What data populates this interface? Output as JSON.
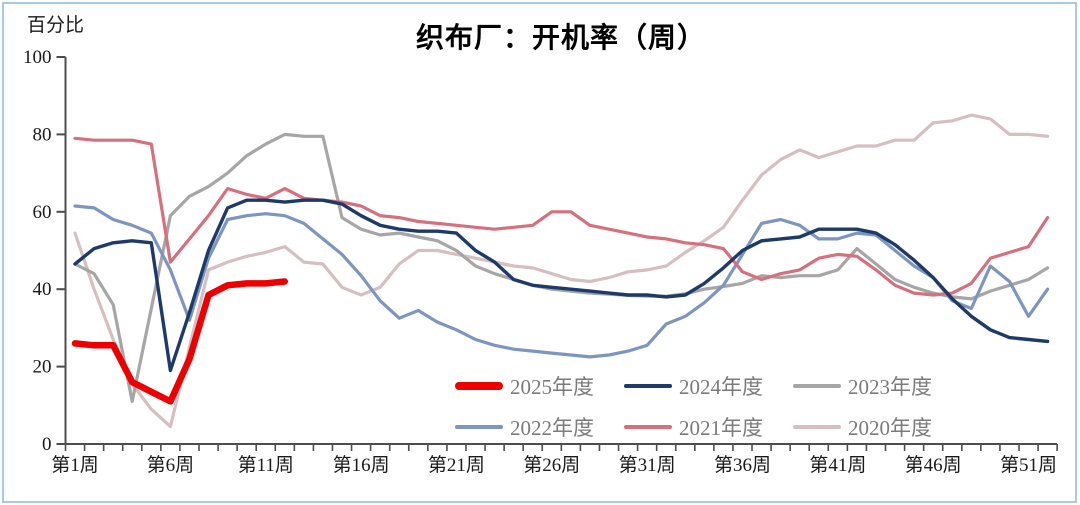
{
  "frame": {
    "border_color": "#a9c9e5"
  },
  "chart_data": {
    "type": "line",
    "title": "织布厂：开机率（周）",
    "ylabel": "百分比",
    "xlabel": "",
    "ylim": [
      0,
      100
    ],
    "y_ticks": [
      0,
      20,
      40,
      60,
      80,
      100
    ],
    "x_weeks_total": 52,
    "x_tick_weeks": [
      1,
      6,
      11,
      16,
      21,
      26,
      31,
      36,
      41,
      46,
      51
    ],
    "x_tick_labels": [
      "第1周",
      "第6周",
      "第11周",
      "第16周",
      "第21周",
      "第26周",
      "第31周",
      "第36周",
      "第41周",
      "第46周",
      "第51周"
    ],
    "grid": false,
    "legend_position": "inside-bottom-center",
    "legend_rows": [
      [
        "2025年度",
        "2024年度",
        "2023年度"
      ],
      [
        "2022年度",
        "2021年度",
        "2020年度"
      ]
    ],
    "series": [
      {
        "name": "2020年度",
        "color": "#d5bfc1",
        "line_width": 3.2,
        "values": [
          54.5,
          40,
          27,
          15.5,
          9,
          4.5,
          25,
          45,
          47,
          48.5,
          49.5,
          51,
          47,
          46.5,
          40.5,
          38.5,
          40.5,
          46.5,
          50,
          50,
          49,
          48,
          47,
          46,
          45.5,
          44,
          42.5,
          42,
          43,
          44.5,
          45,
          46,
          49.5,
          52.5,
          56,
          63,
          69.5,
          73.5,
          76,
          74,
          75.5,
          77,
          77,
          78.5,
          78.5,
          83,
          83.5,
          85,
          84,
          80,
          80,
          79.5
        ]
      },
      {
        "name": "2023年度",
        "color": "#a6a6a6",
        "line_width": 3.2,
        "values": [
          46.5,
          44,
          36,
          11,
          35,
          59,
          64,
          66.5,
          70,
          74.5,
          77.5,
          80,
          79.5,
          79.5,
          58.5,
          55.5,
          54,
          54.5,
          53.5,
          52.5,
          50,
          46,
          44,
          42.5,
          41,
          40,
          39.5,
          39,
          38.7,
          38.4,
          38.2,
          38.2,
          38.8,
          40,
          40.7,
          41.5,
          43.5,
          43,
          43.5,
          43.5,
          45,
          50.5,
          46.5,
          42.5,
          40.5,
          39,
          38,
          37.5,
          39.5,
          41,
          42.5,
          45.5
        ]
      },
      {
        "name": "2022年度",
        "color": "#7d95bf",
        "line_width": 3.2,
        "values": [
          61.5,
          61,
          58,
          56.5,
          54.5,
          45,
          32,
          48,
          58,
          59,
          59.5,
          59,
          57,
          53,
          49,
          43.5,
          37,
          32.5,
          34.5,
          31.5,
          29.5,
          27,
          25.5,
          24.5,
          24,
          23.5,
          23,
          22.5,
          23,
          24,
          25.5,
          31,
          33,
          36.5,
          41,
          49,
          57,
          58,
          56.5,
          53,
          53,
          54.5,
          54,
          50,
          46,
          43,
          37,
          35,
          46,
          42,
          33,
          40
        ]
      },
      {
        "name": "2021年度",
        "color": "#d5707e",
        "line_width": 3.2,
        "values": [
          79,
          78.5,
          78.5,
          78.5,
          77.5,
          47,
          53,
          59,
          66,
          64.5,
          63.5,
          66,
          63.5,
          63,
          62.5,
          61.5,
          59,
          58.5,
          57.5,
          57,
          56.5,
          56,
          55.5,
          56,
          56.5,
          60,
          60,
          56.5,
          55.5,
          54.5,
          53.5,
          53,
          52,
          51.5,
          50.5,
          44.5,
          42.5,
          44,
          45,
          48,
          49,
          48.5,
          45,
          41,
          39,
          38.5,
          39,
          41.5,
          48,
          49.5,
          51,
          58.5
        ]
      },
      {
        "name": "2024年度",
        "color": "#1e3a68",
        "line_width": 3.4,
        "values": [
          46.5,
          50.5,
          52,
          52.5,
          52,
          19,
          34,
          50,
          61,
          63,
          63,
          62.5,
          63,
          63,
          62,
          59,
          56.5,
          55.5,
          55,
          55,
          54.5,
          50,
          47,
          42.5,
          41,
          40.5,
          40,
          39.5,
          39,
          38.5,
          38.5,
          38,
          38.5,
          41.5,
          45.5,
          50,
          52.5,
          53,
          53.5,
          55.5,
          55.5,
          55.5,
          54.5,
          51.5,
          47.5,
          43,
          37.5,
          33,
          29.5,
          27.5,
          27,
          26.5
        ]
      },
      {
        "name": "2025年度",
        "color": "#ee0000",
        "line_width": 6.5,
        "values": [
          26,
          25.5,
          25.5,
          16,
          13.5,
          11,
          22,
          38.5,
          41,
          41.5,
          41.5,
          42
        ]
      }
    ]
  }
}
